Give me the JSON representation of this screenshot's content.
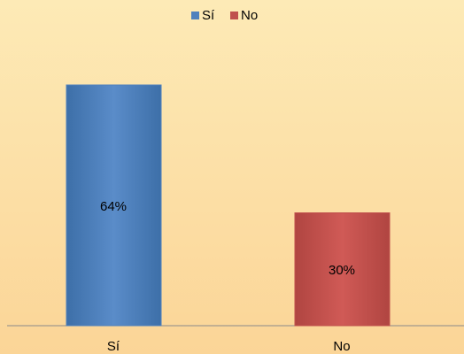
{
  "chart_data": {
    "type": "bar",
    "categories": [
      "Sí",
      "No"
    ],
    "values": [
      64,
      30
    ],
    "value_labels": [
      "64%",
      "30%"
    ],
    "colors": [
      "#4f81bd",
      "#c0504d"
    ],
    "legend": "top"
  }
}
